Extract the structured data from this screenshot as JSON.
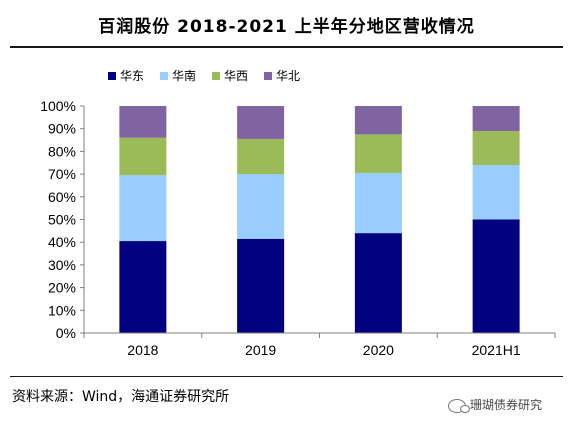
{
  "title": "百润股份 2018-2021 上半年分地区营收情况",
  "source": "资料来源：Wind，海通证券研究所",
  "watermark": "珊瑚债券研究",
  "chart_data": {
    "type": "bar",
    "stacked": true,
    "percent": true,
    "categories": [
      "2018",
      "2019",
      "2020",
      "2021H1"
    ],
    "series": [
      {
        "name": "华东",
        "color": "#000080",
        "values": [
          40.5,
          41.5,
          44,
          50
        ]
      },
      {
        "name": "华南",
        "color": "#99ccff",
        "values": [
          29,
          28.5,
          26.5,
          24
        ]
      },
      {
        "name": "华西",
        "color": "#9bbb59",
        "values": [
          16.5,
          15.5,
          17,
          15
        ]
      },
      {
        "name": "华北",
        "color": "#8064a2",
        "values": [
          14,
          14.5,
          12.5,
          11
        ]
      }
    ],
    "yticks": [
      "0%",
      "10%",
      "20%",
      "30%",
      "40%",
      "50%",
      "60%",
      "70%",
      "80%",
      "90%",
      "100%"
    ],
    "ylim": [
      0,
      100
    ],
    "legend": "top-left",
    "grid": false
  }
}
